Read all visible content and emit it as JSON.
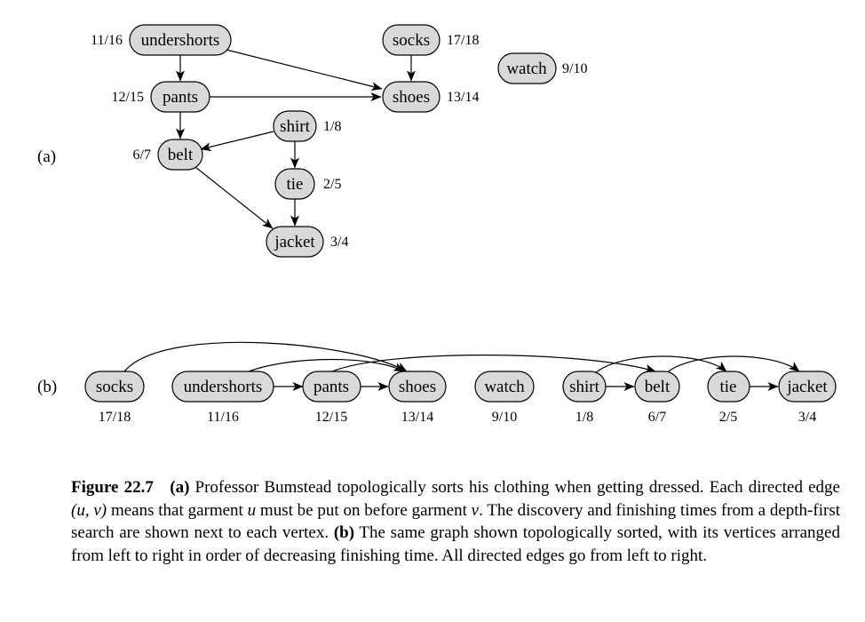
{
  "panel_a": {
    "label": "(a)",
    "nodes": [
      {
        "id": "undershorts",
        "label": "undershorts",
        "time": "11/16"
      },
      {
        "id": "socks",
        "label": "socks",
        "time": "17/18"
      },
      {
        "id": "watch",
        "label": "watch",
        "time": "9/10"
      },
      {
        "id": "pants",
        "label": "pants",
        "time": "12/15"
      },
      {
        "id": "shoes",
        "label": "shoes",
        "time": "13/14"
      },
      {
        "id": "shirt",
        "label": "shirt",
        "time": "1/8"
      },
      {
        "id": "belt",
        "label": "belt",
        "time": "6/7"
      },
      {
        "id": "tie",
        "label": "tie",
        "time": "2/5"
      },
      {
        "id": "jacket",
        "label": "jacket",
        "time": "3/4"
      }
    ],
    "edges": [
      [
        "undershorts",
        "pants"
      ],
      [
        "undershorts",
        "shoes"
      ],
      [
        "socks",
        "shoes"
      ],
      [
        "pants",
        "shoes"
      ],
      [
        "pants",
        "belt"
      ],
      [
        "shirt",
        "belt"
      ],
      [
        "shirt",
        "tie"
      ],
      [
        "belt",
        "jacket"
      ],
      [
        "tie",
        "jacket"
      ]
    ]
  },
  "panel_b": {
    "label": "(b)",
    "order": [
      "socks",
      "undershorts",
      "pants",
      "shoes",
      "watch",
      "shirt",
      "belt",
      "tie",
      "jacket"
    ],
    "times": [
      "17/18",
      "11/16",
      "12/15",
      "13/14",
      "9/10",
      "1/8",
      "6/7",
      "2/5",
      "3/4"
    ],
    "straight_edges": [
      [
        "undershorts",
        "pants"
      ],
      [
        "pants",
        "shoes"
      ],
      [
        "shirt",
        "belt"
      ],
      [
        "tie",
        "jacket"
      ]
    ],
    "arc_edges": [
      [
        "socks",
        "shoes"
      ],
      [
        "undershorts",
        "shoes"
      ],
      [
        "pants",
        "belt"
      ],
      [
        "shirt",
        "tie"
      ],
      [
        "belt",
        "jacket"
      ]
    ]
  },
  "caption": {
    "figure_label": "Figure 22.7",
    "part_a_label": "(a)",
    "text_1": " Professor Bumstead topologically sorts his clothing when getting dressed. Each directed edge ",
    "pair": "(u, v)",
    "text_2": " means that garment ",
    "var_u": "u",
    "text_3": " must be put on before garment ",
    "var_v": "v",
    "text_4": ". The discovery and finishing times from a depth-first search are shown next to each vertex. ",
    "part_b_label": "(b)",
    "text_5": " The same graph shown topologically sorted, with its vertices arranged from left to right in order of decreasing finishing time. All directed edges go from left to right."
  }
}
